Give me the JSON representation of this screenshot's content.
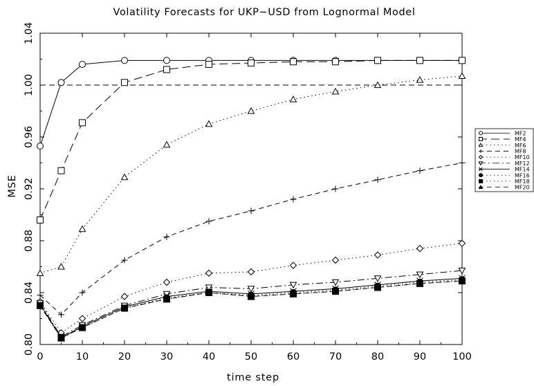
{
  "chart_data": {
    "type": "line",
    "title": "Volatility Forecasts for UKP−USD from Lognormal Model",
    "xlabel": "time step",
    "ylabel": "MSE",
    "xlim": [
      0,
      100
    ],
    "ylim": [
      0.8,
      1.04
    ],
    "x_ticks": [
      "0",
      "10",
      "20",
      "30",
      "40",
      "50",
      "60",
      "70",
      "80",
      "90",
      "100"
    ],
    "y_ticks": [
      "0.80",
      "0.84",
      "0.88",
      "0.92",
      "0.96",
      "1.00",
      "1.04"
    ],
    "reference_line": {
      "y": 1.0,
      "style": "dashed"
    },
    "grid": false,
    "legend_position": "right",
    "x": [
      0,
      5,
      10,
      20,
      30,
      40,
      50,
      60,
      70,
      80,
      90,
      100
    ],
    "series": [
      {
        "name": "MF2",
        "marker": "circle",
        "line": "solid",
        "values": [
          0.953,
          1.002,
          1.016,
          1.019,
          1.019,
          1.019,
          1.019,
          1.019,
          1.019,
          1.019,
          1.019,
          1.019
        ]
      },
      {
        "name": "MF4",
        "marker": "square",
        "line": "longdash",
        "values": [
          0.896,
          0.934,
          0.971,
          1.002,
          1.012,
          1.016,
          1.017,
          1.018,
          1.018,
          1.019,
          1.019,
          1.019
        ]
      },
      {
        "name": "MF6",
        "marker": "triangle",
        "line": "dotted",
        "values": [
          0.855,
          0.86,
          0.889,
          0.929,
          0.954,
          0.97,
          0.98,
          0.989,
          0.995,
          1.0,
          1.004,
          1.007
        ]
      },
      {
        "name": "MF8",
        "marker": "plus",
        "line": "dashed",
        "values": [
          0.838,
          0.823,
          0.84,
          0.865,
          0.883,
          0.895,
          0.903,
          0.912,
          0.92,
          0.927,
          0.934,
          0.94
        ]
      },
      {
        "name": "MF10",
        "marker": "diamond",
        "line": "dotted",
        "values": [
          0.833,
          0.809,
          0.82,
          0.837,
          0.848,
          0.855,
          0.856,
          0.861,
          0.865,
          0.869,
          0.874,
          0.878
        ]
      },
      {
        "name": "MF12",
        "marker": "triangle-down",
        "line": "dashdot",
        "values": [
          0.832,
          0.806,
          0.815,
          0.83,
          0.839,
          0.844,
          0.843,
          0.846,
          0.848,
          0.851,
          0.854,
          0.857
        ]
      },
      {
        "name": "MF14",
        "marker": "star",
        "line": "solid",
        "values": [
          0.831,
          0.805,
          0.814,
          0.829,
          0.837,
          0.841,
          0.839,
          0.841,
          0.843,
          0.846,
          0.849,
          0.851
        ]
      },
      {
        "name": "MF16",
        "marker": "filled-circle",
        "line": "dotted",
        "values": [
          0.83,
          0.805,
          0.813,
          0.828,
          0.836,
          0.84,
          0.838,
          0.84,
          0.842,
          0.845,
          0.848,
          0.85
        ]
      },
      {
        "name": "MF18",
        "marker": "filled-square",
        "line": "dotted",
        "values": [
          0.83,
          0.805,
          0.813,
          0.828,
          0.835,
          0.84,
          0.837,
          0.839,
          0.841,
          0.844,
          0.847,
          0.849
        ]
      },
      {
        "name": "MF20",
        "marker": "filled-triangle",
        "line": "dashed",
        "values": [
          0.83,
          0.805,
          0.813,
          0.828,
          0.835,
          0.84,
          0.837,
          0.839,
          0.841,
          0.844,
          0.847,
          0.849
        ]
      }
    ]
  }
}
